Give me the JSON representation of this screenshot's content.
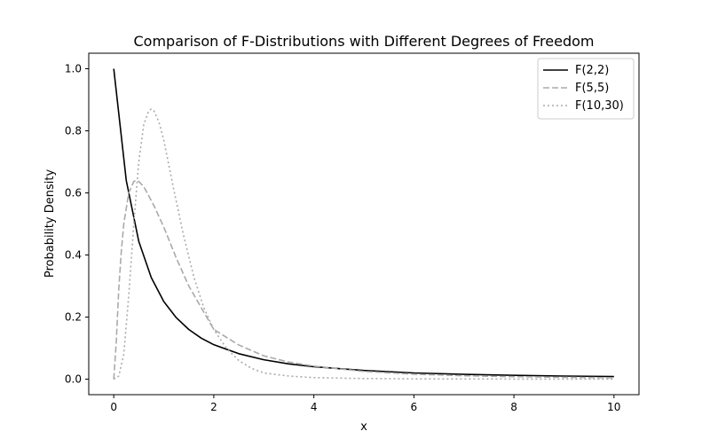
{
  "chart_data": {
    "type": "line",
    "title": "Comparison of F-Distributions with Different Degrees of Freedom",
    "xlabel": "x",
    "ylabel": "Probability Density",
    "xlim": [
      -0.5,
      10.5
    ],
    "ylim": [
      -0.05,
      1.05
    ],
    "xticks": [
      0,
      2,
      4,
      6,
      8,
      10
    ],
    "xtick_labels": [
      "0",
      "2",
      "4",
      "6",
      "8",
      "10"
    ],
    "yticks": [
      0.0,
      0.2,
      0.4,
      0.6,
      0.8,
      1.0
    ],
    "ytick_labels": [
      "0.0",
      "0.2",
      "0.4",
      "0.6",
      "0.8",
      "1.0"
    ],
    "grid": false,
    "legend_position": "top-right",
    "series": [
      {
        "name": "F(2,2)",
        "color": "#000000",
        "style": "solid",
        "x": [
          0,
          0.25,
          0.5,
          0.75,
          1,
          1.25,
          1.5,
          1.75,
          2,
          2.5,
          3,
          3.5,
          4,
          5,
          6,
          7,
          8,
          9,
          10
        ],
        "y": [
          1.0,
          0.64,
          0.444,
          0.327,
          0.25,
          0.198,
          0.16,
          0.132,
          0.111,
          0.082,
          0.0625,
          0.049,
          0.04,
          0.028,
          0.02,
          0.0156,
          0.0123,
          0.01,
          0.0083
        ]
      },
      {
        "name": "F(5,5)",
        "color": "#aaaaaa",
        "style": "dashed",
        "x": [
          0,
          0.05,
          0.1,
          0.15,
          0.2,
          0.3,
          0.4,
          0.45,
          0.5,
          0.6,
          0.8,
          1,
          1.25,
          1.5,
          1.75,
          2,
          2.5,
          3,
          3.5,
          4,
          5,
          6,
          7,
          8,
          9,
          10
        ],
        "y": [
          0,
          0.12,
          0.29,
          0.41,
          0.5,
          0.6,
          0.637,
          0.64,
          0.637,
          0.62,
          0.56,
          0.49,
          0.39,
          0.3,
          0.23,
          0.16,
          0.11,
          0.075,
          0.055,
          0.042,
          0.025,
          0.016,
          0.011,
          0.008,
          0.006,
          0.0045
        ]
      },
      {
        "name": "F(10,30)",
        "color": "#aaaaaa",
        "style": "dotted",
        "x": [
          0,
          0.1,
          0.2,
          0.3,
          0.4,
          0.5,
          0.6,
          0.7,
          0.75,
          0.8,
          0.9,
          1,
          1.1,
          1.2,
          1.4,
          1.6,
          1.8,
          2,
          2.25,
          2.5,
          2.75,
          3,
          3.5,
          4,
          5,
          6,
          7,
          8,
          9,
          10
        ],
        "y": [
          0,
          0.01,
          0.08,
          0.27,
          0.5,
          0.7,
          0.82,
          0.865,
          0.87,
          0.865,
          0.83,
          0.77,
          0.69,
          0.61,
          0.46,
          0.33,
          0.23,
          0.16,
          0.1,
          0.06,
          0.035,
          0.02,
          0.01,
          0.005,
          0.002,
          0.001,
          0.0005,
          0.0003,
          0.0002,
          0.0001
        ]
      }
    ]
  }
}
